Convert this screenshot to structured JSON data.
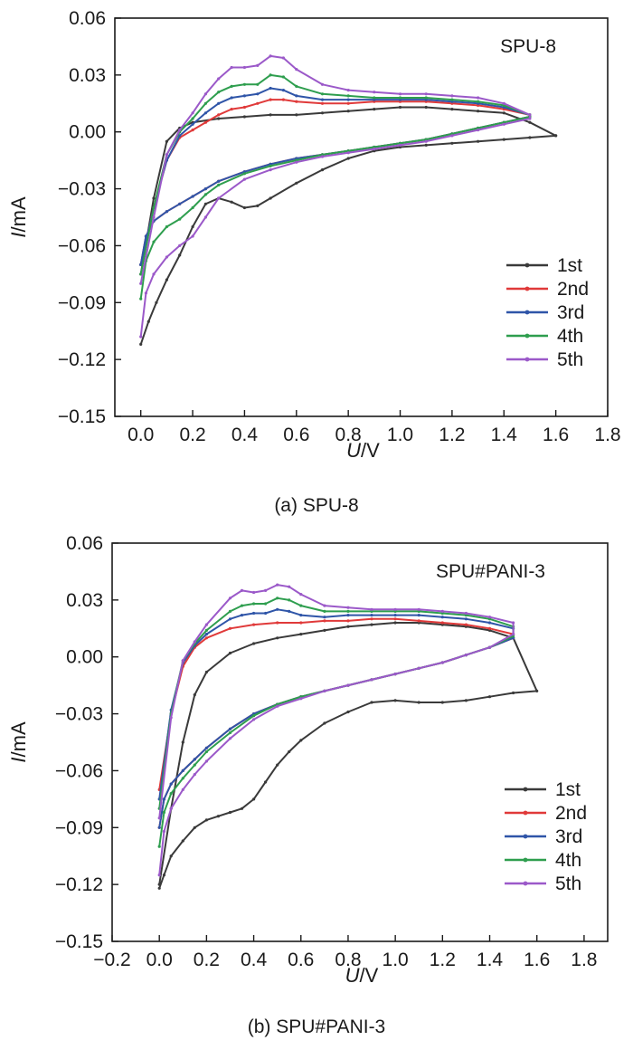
{
  "chart_data": [
    {
      "type": "line",
      "panel_label": "SPU-8",
      "caption": "(a) SPU-8",
      "xlabel_var": "U",
      "xlabel_unit": "/V",
      "ylabel_var": "I",
      "ylabel_unit": "/mA",
      "xlim": [
        -0.1,
        1.8
      ],
      "ylim": [
        -0.15,
        0.06
      ],
      "xticks": [
        "0.0",
        "0.2",
        "0.4",
        "0.6",
        "0.8",
        "1.0",
        "1.2",
        "1.4",
        "1.6",
        "1.8"
      ],
      "yticks": [
        "0.06",
        "0.03",
        "0.00",
        "−0.03",
        "−0.06",
        "−0.09",
        "−0.12",
        "−0.15"
      ],
      "legend_position": "bottom-right",
      "grid": false,
      "series": [
        {
          "name": "1st",
          "color": "#3a3a3a",
          "x": [
            0.0,
            0.03,
            0.06,
            0.1,
            0.15,
            0.2,
            0.25,
            0.3,
            0.35,
            0.4,
            0.45,
            0.5,
            0.6,
            0.7,
            0.8,
            0.9,
            1.0,
            1.1,
            1.2,
            1.3,
            1.4,
            1.5,
            1.6,
            1.6,
            1.5,
            1.4,
            1.3,
            1.2,
            1.1,
            1.0,
            0.9,
            0.8,
            0.7,
            0.6,
            0.5,
            0.4,
            0.3,
            0.2,
            0.15,
            0.1,
            0.05,
            0.0
          ],
          "y": [
            -0.112,
            -0.1,
            -0.09,
            -0.078,
            -0.065,
            -0.05,
            -0.038,
            -0.035,
            -0.037,
            -0.04,
            -0.039,
            -0.035,
            -0.027,
            -0.02,
            -0.014,
            -0.01,
            -0.008,
            -0.007,
            -0.006,
            -0.005,
            -0.004,
            -0.003,
            -0.002,
            -0.002,
            0.005,
            0.01,
            0.011,
            0.012,
            0.013,
            0.013,
            0.012,
            0.011,
            0.01,
            0.009,
            0.009,
            0.008,
            0.007,
            0.005,
            0.002,
            -0.005,
            -0.035,
            -0.075
          ]
        },
        {
          "name": "2nd",
          "color": "#e03a3a",
          "x": [
            0.0,
            0.02,
            0.05,
            0.1,
            0.15,
            0.2,
            0.25,
            0.3,
            0.4,
            0.5,
            0.6,
            0.7,
            0.8,
            0.9,
            1.0,
            1.1,
            1.2,
            1.3,
            1.4,
            1.5,
            1.5,
            1.4,
            1.3,
            1.2,
            1.1,
            1.0,
            0.9,
            0.8,
            0.7,
            0.6,
            0.55,
            0.5,
            0.45,
            0.4,
            0.35,
            0.3,
            0.25,
            0.2,
            0.15,
            0.1,
            0.05,
            0.0
          ],
          "y": [
            -0.07,
            -0.055,
            -0.047,
            -0.042,
            -0.038,
            -0.034,
            -0.03,
            -0.026,
            -0.021,
            -0.017,
            -0.014,
            -0.012,
            -0.01,
            -0.008,
            -0.006,
            -0.004,
            -0.001,
            0.002,
            0.005,
            0.008,
            0.009,
            0.012,
            0.014,
            0.015,
            0.016,
            0.016,
            0.016,
            0.015,
            0.015,
            0.016,
            0.017,
            0.017,
            0.015,
            0.013,
            0.012,
            0.009,
            0.005,
            0.001,
            -0.003,
            -0.015,
            -0.04,
            -0.07
          ]
        },
        {
          "name": "3rd",
          "color": "#2f55a8",
          "x": [
            0.0,
            0.02,
            0.05,
            0.1,
            0.15,
            0.2,
            0.25,
            0.3,
            0.4,
            0.5,
            0.6,
            0.7,
            0.8,
            0.9,
            1.0,
            1.1,
            1.2,
            1.3,
            1.4,
            1.5,
            1.5,
            1.4,
            1.3,
            1.2,
            1.1,
            1.0,
            0.9,
            0.8,
            0.7,
            0.6,
            0.55,
            0.5,
            0.45,
            0.4,
            0.35,
            0.3,
            0.25,
            0.2,
            0.15,
            0.1,
            0.05,
            0.0
          ],
          "y": [
            -0.07,
            -0.055,
            -0.047,
            -0.042,
            -0.038,
            -0.034,
            -0.03,
            -0.026,
            -0.021,
            -0.017,
            -0.014,
            -0.012,
            -0.01,
            -0.008,
            -0.006,
            -0.004,
            -0.001,
            0.002,
            0.005,
            0.008,
            0.009,
            0.013,
            0.015,
            0.016,
            0.017,
            0.017,
            0.017,
            0.017,
            0.017,
            0.019,
            0.022,
            0.023,
            0.02,
            0.019,
            0.018,
            0.015,
            0.01,
            0.004,
            -0.002,
            -0.015,
            -0.04,
            -0.07
          ]
        },
        {
          "name": "4th",
          "color": "#2e9e4e",
          "x": [
            0.0,
            0.02,
            0.05,
            0.1,
            0.15,
            0.2,
            0.25,
            0.3,
            0.4,
            0.5,
            0.6,
            0.7,
            0.8,
            0.9,
            1.0,
            1.1,
            1.2,
            1.3,
            1.4,
            1.5,
            1.5,
            1.4,
            1.3,
            1.2,
            1.1,
            1.0,
            0.9,
            0.8,
            0.7,
            0.6,
            0.55,
            0.5,
            0.45,
            0.4,
            0.35,
            0.3,
            0.25,
            0.2,
            0.15,
            0.1,
            0.05,
            0.0
          ],
          "y": [
            -0.088,
            -0.068,
            -0.058,
            -0.05,
            -0.046,
            -0.04,
            -0.033,
            -0.028,
            -0.022,
            -0.018,
            -0.015,
            -0.012,
            -0.01,
            -0.008,
            -0.006,
            -0.004,
            -0.001,
            0.002,
            0.005,
            0.008,
            0.009,
            0.014,
            0.016,
            0.017,
            0.018,
            0.018,
            0.018,
            0.019,
            0.02,
            0.024,
            0.029,
            0.03,
            0.025,
            0.025,
            0.024,
            0.021,
            0.015,
            0.007,
            0.0,
            -0.012,
            -0.04,
            -0.075
          ]
        },
        {
          "name": "5th",
          "color": "#9b59c9",
          "x": [
            0.0,
            0.02,
            0.05,
            0.1,
            0.15,
            0.2,
            0.25,
            0.3,
            0.4,
            0.5,
            0.6,
            0.7,
            0.8,
            0.9,
            1.0,
            1.1,
            1.2,
            1.3,
            1.4,
            1.5,
            1.5,
            1.4,
            1.3,
            1.2,
            1.1,
            1.0,
            0.9,
            0.8,
            0.7,
            0.6,
            0.55,
            0.5,
            0.45,
            0.4,
            0.35,
            0.3,
            0.25,
            0.2,
            0.15,
            0.1,
            0.05,
            0.0
          ],
          "y": [
            -0.108,
            -0.085,
            -0.075,
            -0.066,
            -0.06,
            -0.055,
            -0.045,
            -0.035,
            -0.025,
            -0.02,
            -0.016,
            -0.013,
            -0.011,
            -0.009,
            -0.007,
            -0.005,
            -0.002,
            0.001,
            0.004,
            0.007,
            0.009,
            0.015,
            0.018,
            0.019,
            0.02,
            0.02,
            0.021,
            0.022,
            0.025,
            0.033,
            0.039,
            0.04,
            0.035,
            0.034,
            0.034,
            0.028,
            0.02,
            0.01,
            0.001,
            -0.012,
            -0.045,
            -0.08
          ]
        }
      ]
    },
    {
      "type": "line",
      "panel_label": "SPU#PANI-3",
      "caption": "(b) SPU#PANI-3",
      "xlabel_var": "U",
      "xlabel_unit": "/V",
      "ylabel_var": "I",
      "ylabel_unit": "/mA",
      "xlim": [
        -0.2,
        1.9
      ],
      "ylim": [
        -0.15,
        0.06
      ],
      "xticks": [
        "−0.2",
        "0.0",
        "0.2",
        "0.4",
        "0.6",
        "0.8",
        "1.0",
        "1.2",
        "1.4",
        "1.6",
        "1.8"
      ],
      "yticks": [
        "0.06",
        "0.03",
        "0.00",
        "−0.03",
        "−0.06",
        "−0.09",
        "−0.12",
        "−0.15"
      ],
      "legend_position": "bottom-right",
      "grid": false,
      "series": [
        {
          "name": "1st",
          "color": "#3a3a3a",
          "x": [
            0.0,
            0.02,
            0.05,
            0.1,
            0.15,
            0.2,
            0.25,
            0.3,
            0.35,
            0.4,
            0.45,
            0.5,
            0.55,
            0.6,
            0.7,
            0.8,
            0.9,
            1.0,
            1.1,
            1.2,
            1.3,
            1.4,
            1.5,
            1.6,
            1.5,
            1.4,
            1.3,
            1.2,
            1.1,
            1.0,
            0.9,
            0.8,
            0.7,
            0.6,
            0.5,
            0.4,
            0.3,
            0.2,
            0.15,
            0.1,
            0.05,
            0.0
          ],
          "y": [
            -0.122,
            -0.115,
            -0.105,
            -0.097,
            -0.09,
            -0.086,
            -0.084,
            -0.082,
            -0.08,
            -0.075,
            -0.066,
            -0.057,
            -0.05,
            -0.044,
            -0.035,
            -0.029,
            -0.024,
            -0.023,
            -0.024,
            -0.024,
            -0.023,
            -0.021,
            -0.019,
            -0.018,
            0.01,
            0.014,
            0.016,
            0.017,
            0.018,
            0.018,
            0.017,
            0.016,
            0.014,
            0.012,
            0.01,
            0.007,
            0.002,
            -0.008,
            -0.02,
            -0.045,
            -0.08,
            -0.12
          ]
        },
        {
          "name": "2nd",
          "color": "#e03a3a",
          "x": [
            0.0,
            0.02,
            0.05,
            0.1,
            0.15,
            0.2,
            0.3,
            0.4,
            0.5,
            0.6,
            0.7,
            0.8,
            0.9,
            1.0,
            1.1,
            1.2,
            1.3,
            1.4,
            1.5,
            1.5,
            1.4,
            1.3,
            1.2,
            1.1,
            1.0,
            0.9,
            0.8,
            0.7,
            0.6,
            0.5,
            0.4,
            0.3,
            0.2,
            0.15,
            0.1,
            0.05,
            0.0
          ],
          "y": [
            -0.09,
            -0.075,
            -0.067,
            -0.06,
            -0.054,
            -0.048,
            -0.038,
            -0.03,
            -0.025,
            -0.021,
            -0.018,
            -0.015,
            -0.012,
            -0.009,
            -0.006,
            -0.003,
            0.001,
            0.005,
            0.01,
            0.012,
            0.015,
            0.017,
            0.018,
            0.019,
            0.02,
            0.02,
            0.019,
            0.019,
            0.018,
            0.018,
            0.017,
            0.015,
            0.01,
            0.005,
            -0.005,
            -0.03,
            -0.07
          ]
        },
        {
          "name": "3rd",
          "color": "#2f55a8",
          "x": [
            0.0,
            0.02,
            0.05,
            0.1,
            0.15,
            0.2,
            0.3,
            0.4,
            0.5,
            0.6,
            0.7,
            0.8,
            0.9,
            1.0,
            1.1,
            1.2,
            1.3,
            1.4,
            1.5,
            1.5,
            1.4,
            1.3,
            1.2,
            1.1,
            1.0,
            0.9,
            0.8,
            0.7,
            0.6,
            0.55,
            0.5,
            0.45,
            0.4,
            0.35,
            0.3,
            0.2,
            0.15,
            0.1,
            0.05,
            0.0
          ],
          "y": [
            -0.09,
            -0.075,
            -0.067,
            -0.06,
            -0.054,
            -0.048,
            -0.038,
            -0.03,
            -0.025,
            -0.021,
            -0.018,
            -0.015,
            -0.012,
            -0.009,
            -0.006,
            -0.003,
            0.001,
            0.005,
            0.01,
            0.015,
            0.018,
            0.02,
            0.021,
            0.022,
            0.022,
            0.022,
            0.022,
            0.021,
            0.022,
            0.024,
            0.025,
            0.023,
            0.023,
            0.022,
            0.02,
            0.012,
            0.006,
            -0.003,
            -0.028,
            -0.075
          ]
        },
        {
          "name": "4th",
          "color": "#2e9e4e",
          "x": [
            0.0,
            0.02,
            0.05,
            0.1,
            0.15,
            0.2,
            0.3,
            0.4,
            0.5,
            0.6,
            0.7,
            0.8,
            0.9,
            1.0,
            1.1,
            1.2,
            1.3,
            1.4,
            1.5,
            1.5,
            1.4,
            1.3,
            1.2,
            1.1,
            1.0,
            0.9,
            0.8,
            0.7,
            0.6,
            0.55,
            0.5,
            0.45,
            0.4,
            0.35,
            0.3,
            0.2,
            0.15,
            0.1,
            0.05,
            0.0
          ],
          "y": [
            -0.1,
            -0.082,
            -0.072,
            -0.064,
            -0.057,
            -0.05,
            -0.04,
            -0.031,
            -0.025,
            -0.021,
            -0.018,
            -0.015,
            -0.012,
            -0.009,
            -0.006,
            -0.003,
            0.001,
            0.005,
            0.011,
            0.016,
            0.02,
            0.022,
            0.023,
            0.024,
            0.024,
            0.024,
            0.024,
            0.024,
            0.027,
            0.03,
            0.031,
            0.028,
            0.028,
            0.027,
            0.024,
            0.014,
            0.007,
            -0.002,
            -0.03,
            -0.08
          ]
        },
        {
          "name": "5th",
          "color": "#9b59c9",
          "x": [
            0.0,
            0.02,
            0.05,
            0.1,
            0.15,
            0.2,
            0.3,
            0.4,
            0.5,
            0.6,
            0.7,
            0.8,
            0.9,
            1.0,
            1.1,
            1.2,
            1.3,
            1.4,
            1.5,
            1.5,
            1.4,
            1.3,
            1.2,
            1.1,
            1.0,
            0.9,
            0.8,
            0.7,
            0.6,
            0.55,
            0.5,
            0.45,
            0.4,
            0.35,
            0.3,
            0.2,
            0.15,
            0.1,
            0.05,
            0.0
          ],
          "y": [
            -0.115,
            -0.092,
            -0.08,
            -0.07,
            -0.062,
            -0.055,
            -0.043,
            -0.033,
            -0.026,
            -0.022,
            -0.018,
            -0.015,
            -0.012,
            -0.009,
            -0.006,
            -0.003,
            0.001,
            0.005,
            0.012,
            0.018,
            0.021,
            0.023,
            0.024,
            0.025,
            0.025,
            0.025,
            0.026,
            0.027,
            0.033,
            0.037,
            0.038,
            0.035,
            0.034,
            0.035,
            0.031,
            0.017,
            0.008,
            -0.002,
            -0.032,
            -0.085
          ]
        }
      ]
    }
  ]
}
